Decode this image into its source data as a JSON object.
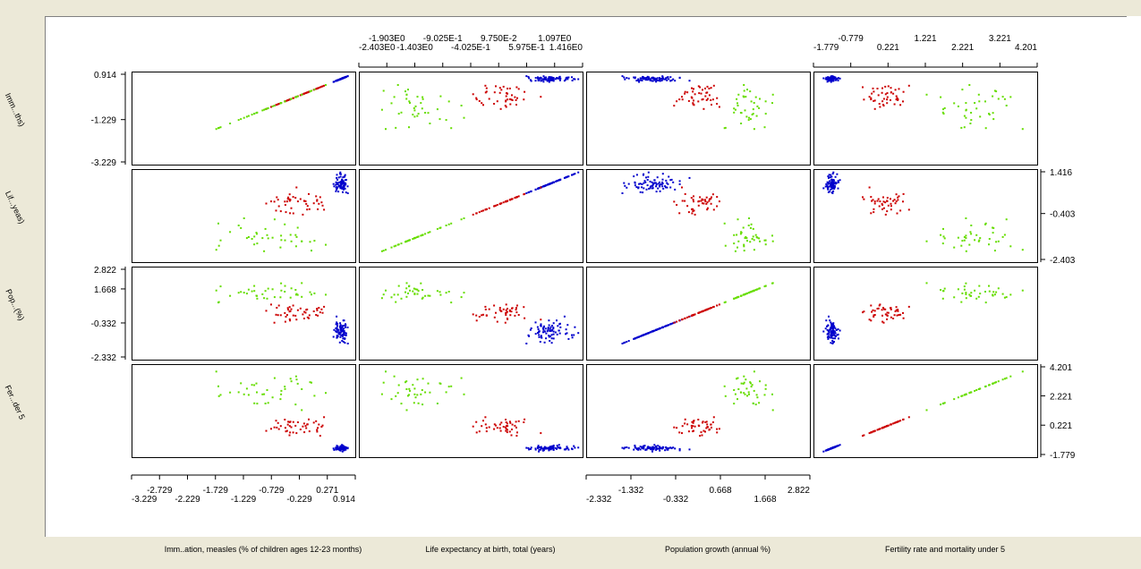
{
  "colors": {
    "blue": "#0000cc",
    "red": "#cc0000",
    "green": "#66dd00",
    "axis": "#000000"
  },
  "chart_data": {
    "type": "scatter",
    "subtype": "scatterplot-matrix",
    "grid": false,
    "variables": [
      {
        "short": "Imm...ths)",
        "name": "Imm..ation, measles (% of children ages 12-23 months)",
        "range": [
          -3.229,
          0.914
        ],
        "tick_labels": [
          "-3.229",
          "-2.729",
          "-2.229",
          "-1.729",
          "-1.229",
          "-0.729",
          "-0.229",
          "0.271",
          "0.914"
        ],
        "left_tick_labels": [
          "0.914",
          "-1.229",
          "-3.229"
        ]
      },
      {
        "short": "Lif...yeas)",
        "name": "Life expectancy at birth, total (years)",
        "range": [
          -2.403,
          1.416
        ],
        "tick_labels": [
          "-2.403E0",
          "-1.903E0",
          "-1.403E0",
          "-9.025E-1",
          "-4.025E-1",
          "9.750E-2",
          "5.975E-1",
          "1.097E0",
          "1.416E0"
        ],
        "right_tick_labels": [
          "1.416",
          "-0.403",
          "-2.403"
        ]
      },
      {
        "short": "Pop...(%)",
        "name": "Population growth (annual %)",
        "range": [
          -2.332,
          2.822
        ],
        "tick_labels": [
          "-2.332",
          "-1.332",
          "-0.332",
          "0.668",
          "1.668",
          "2.822"
        ],
        "left_tick_labels": [
          "2.822",
          "1.668",
          "-0.332",
          "-2.332"
        ]
      },
      {
        "short": "Fer...der 5",
        "name": "Fertility rate and mortality under 5",
        "range": [
          -1.779,
          4.201
        ],
        "tick_labels": [
          "-1.779",
          "-0.779",
          "0.221",
          "1.221",
          "2.221",
          "3.221",
          "4.201"
        ],
        "right_tick_labels": [
          "4.201",
          "2.221",
          "0.221",
          "-1.779"
        ]
      }
    ],
    "clusters": [
      {
        "color": "blue",
        "means": [
          0.7,
          0.9,
          -0.85,
          -1.35
        ],
        "sd": [
          0.12,
          0.3,
          0.55,
          0.15
        ],
        "n": 80
      },
      {
        "color": "red",
        "means": [
          -0.1,
          0.05,
          0.15,
          0.05
        ],
        "sd": [
          0.6,
          0.45,
          0.5,
          0.5
        ],
        "n": 45
      },
      {
        "color": "green",
        "means": [
          -0.8,
          -1.35,
          1.5,
          2.6
        ],
        "sd": [
          0.8,
          0.55,
          0.55,
          0.9
        ],
        "n": 40
      }
    ]
  }
}
